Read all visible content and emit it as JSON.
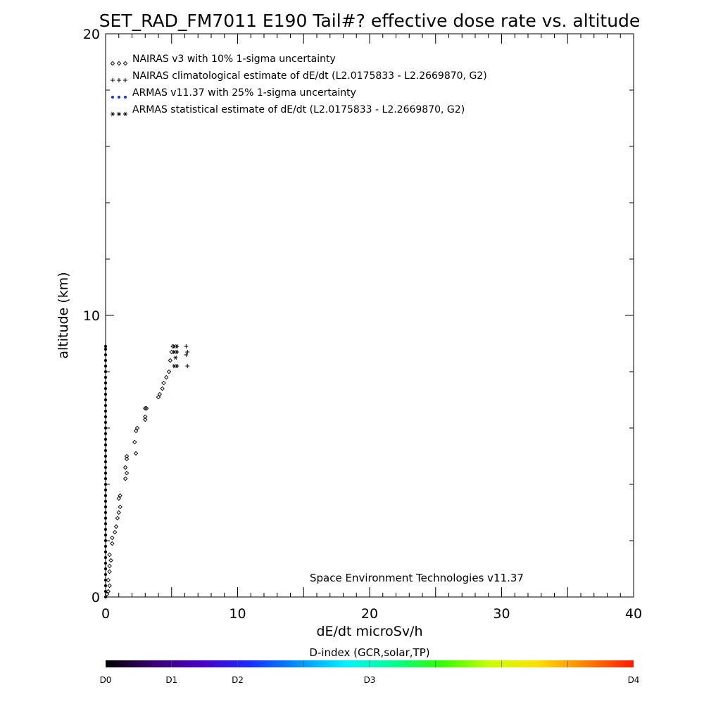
{
  "chart_data": {
    "type": "scatter",
    "title": "SET_RAD_FM7011  E190 Tail#? effective dose rate vs. altitude",
    "xlabel": "dE/dt microSv/h",
    "ylabel": "altitude (km)",
    "xlim": [
      0,
      40
    ],
    "ylim": [
      0,
      20
    ],
    "x_ticks": [
      "0",
      "10",
      "20",
      "30",
      "40"
    ],
    "y_ticks": [
      "0",
      "10",
      "20"
    ],
    "legend_position": "top-left",
    "legend": [
      {
        "marker": "◇◇◇",
        "label": "NAIRAS v3 with 10% 1-sigma uncertainty",
        "color": "#000000"
      },
      {
        "marker": "+++",
        "label": "NAIRAS climatological estimate of dE/dt (L2.0175833 - L2.2669870, G2)",
        "color": "#000000"
      },
      {
        "marker": "●●●",
        "label": "ARMAS v11.37 with 25% 1-sigma uncertainty",
        "color": "#1a3fc4"
      },
      {
        "marker": "***",
        "label": "ARMAS statistical estimate of dE/dt (L2.0175833 - L2.2669870, G2)",
        "color": "#000000"
      }
    ],
    "annotation": "Space Environment Technologies v11.37",
    "series": [
      {
        "name": "NAIRAS v3 with 10% 1-sigma uncertainty",
        "marker": "diamond",
        "points": [
          [
            0.1,
            0.1
          ],
          [
            0.2,
            0.2
          ],
          [
            0.3,
            0.4
          ],
          [
            0.2,
            0.6
          ],
          [
            0.3,
            0.9
          ],
          [
            0.3,
            1.1
          ],
          [
            0.4,
            1.3
          ],
          [
            0.3,
            1.5
          ],
          [
            0.5,
            1.9
          ],
          [
            0.5,
            2.1
          ],
          [
            0.7,
            2.3
          ],
          [
            0.8,
            2.5
          ],
          [
            0.9,
            2.8
          ],
          [
            1.0,
            3.0
          ],
          [
            1.1,
            3.2
          ],
          [
            1.0,
            3.5
          ],
          [
            1.1,
            3.6
          ],
          [
            1.5,
            4.2
          ],
          [
            1.6,
            4.4
          ],
          [
            1.5,
            4.6
          ],
          [
            1.6,
            4.9
          ],
          [
            1.6,
            5.0
          ],
          [
            2.3,
            5.1
          ],
          [
            2.2,
            5.5
          ],
          [
            2.3,
            5.9
          ],
          [
            2.4,
            6.0
          ],
          [
            3.0,
            6.3
          ],
          [
            3.0,
            6.4
          ],
          [
            3.1,
            6.7
          ],
          [
            3.0,
            6.7
          ],
          [
            4.0,
            7.1
          ],
          [
            4.1,
            7.2
          ],
          [
            4.3,
            7.4
          ],
          [
            4.4,
            7.6
          ],
          [
            4.6,
            7.8
          ],
          [
            4.8,
            8.0
          ],
          [
            4.9,
            8.4
          ],
          [
            5.0,
            8.7
          ],
          [
            5.1,
            8.9
          ]
        ]
      },
      {
        "name": "NAIRAS climatological estimate of dE/dt (L2.0175833 - L2.2669870, G2)",
        "marker": "plus",
        "points": [
          [
            6.2,
            8.2
          ],
          [
            6.1,
            8.6
          ],
          [
            6.2,
            8.7
          ],
          [
            6.1,
            8.9
          ]
        ]
      },
      {
        "name": "ARMAS v11.37 with 25% 1-sigma uncertainty",
        "marker": "dot",
        "points": [
          [
            0,
            0.0
          ],
          [
            0,
            0.2
          ],
          [
            0,
            0.4
          ],
          [
            0,
            0.6
          ],
          [
            0,
            0.8
          ],
          [
            0,
            1.0
          ],
          [
            0,
            1.2
          ],
          [
            0,
            1.4
          ],
          [
            0,
            1.6
          ],
          [
            0,
            1.8
          ],
          [
            0,
            2.0
          ],
          [
            0,
            2.2
          ],
          [
            0,
            2.4
          ],
          [
            0,
            2.6
          ],
          [
            0,
            2.8
          ],
          [
            0,
            3.0
          ],
          [
            0,
            3.2
          ],
          [
            0,
            3.4
          ],
          [
            0,
            3.6
          ],
          [
            0,
            3.8
          ],
          [
            0,
            4.0
          ],
          [
            0,
            4.2
          ],
          [
            0,
            4.4
          ],
          [
            0,
            4.6
          ],
          [
            0,
            4.8
          ],
          [
            0,
            5.0
          ],
          [
            0,
            5.2
          ],
          [
            0,
            5.4
          ],
          [
            0,
            5.6
          ],
          [
            0,
            5.8
          ],
          [
            0,
            6.0
          ],
          [
            0,
            6.2
          ],
          [
            0,
            6.4
          ],
          [
            0,
            6.6
          ],
          [
            0,
            6.8
          ],
          [
            0,
            7.0
          ],
          [
            0,
            7.2
          ],
          [
            0,
            7.4
          ],
          [
            0,
            7.6
          ],
          [
            0,
            7.8
          ],
          [
            0,
            8.0
          ],
          [
            0,
            8.2
          ],
          [
            0,
            8.4
          ],
          [
            0,
            8.6
          ],
          [
            0,
            8.8
          ],
          [
            0,
            8.9
          ]
        ]
      },
      {
        "name": "ARMAS statistical estimate of dE/dt (L2.0175833 - L2.2669870, G2)",
        "marker": "asterisk",
        "points": [
          [
            5.2,
            8.2
          ],
          [
            5.4,
            8.2
          ],
          [
            5.2,
            8.7
          ],
          [
            5.4,
            8.7
          ],
          [
            5.2,
            8.9
          ],
          [
            5.4,
            8.9
          ],
          [
            5.3,
            8.5
          ]
        ]
      }
    ],
    "colorbar": {
      "label": "D-index (GCR,solar,TP)",
      "ticks": [
        {
          "label": "D0",
          "pos": 0.0
        },
        {
          "label": "D1",
          "pos": 0.125
        },
        {
          "label": "D2",
          "pos": 0.25
        },
        {
          "label": "D3",
          "pos": 0.5
        },
        {
          "label": "D4",
          "pos": 1.0
        }
      ],
      "colors": [
        "#000000",
        "#3a0070",
        "#4b00c8",
        "#1a2cff",
        "#0090ff",
        "#00f0ff",
        "#00ff90",
        "#30ff00",
        "#c8ff00",
        "#ffe000",
        "#ff8000",
        "#ff1a00"
      ]
    }
  }
}
